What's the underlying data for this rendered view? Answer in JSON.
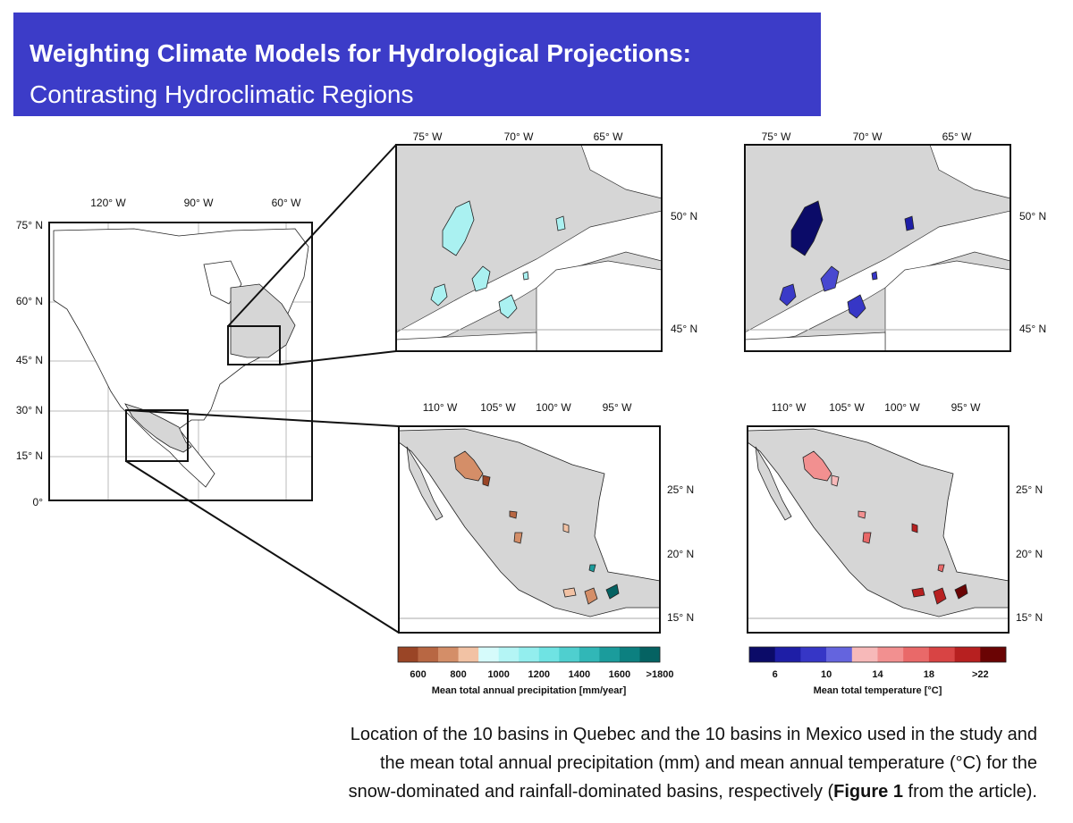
{
  "header": {
    "title": "Weighting Climate Models for Hydrological Projections:",
    "subtitle": "Contrasting Hydroclimatic Regions"
  },
  "overview_map": {
    "lon_labels": [
      "120° W",
      "90° W",
      "60° W"
    ],
    "lat_labels": [
      "75° N",
      "60° N",
      "45° N",
      "30° N",
      "15° N",
      "0°"
    ]
  },
  "quebec_precip_map": {
    "lon_labels": [
      "75° W",
      "70° W",
      "65° W"
    ],
    "lat_labels": [
      "50° N",
      "45° N"
    ]
  },
  "quebec_temp_map": {
    "lon_labels": [
      "75° W",
      "70° W",
      "65° W"
    ],
    "lat_labels": [
      "50° N",
      "45° N"
    ]
  },
  "mexico_precip_map": {
    "lon_labels": [
      "110° W",
      "105° W",
      "100° W",
      "95° W"
    ],
    "lat_labels": [
      "25° N",
      "20° N",
      "15° N"
    ]
  },
  "mexico_temp_map": {
    "lon_labels": [
      "110° W",
      "105° W",
      "100° W",
      "95° W"
    ],
    "lat_labels": [
      "25° N",
      "20° N",
      "15° N"
    ]
  },
  "precip_colorbar": {
    "title": "Mean total annual precipitation [mm/year]",
    "labels": [
      "600",
      "800",
      "1000",
      "1200",
      "1400",
      "1600",
      ">1800"
    ],
    "colors": [
      "#9a4526",
      "#b86743",
      "#d48e68",
      "#f2c2a4",
      "#d6fbfb",
      "#b4f5f5",
      "#93eeee",
      "#6fe3e3",
      "#4fcfcf",
      "#31b7b7",
      "#1b9c9c",
      "#0c8080",
      "#056262"
    ]
  },
  "temp_colorbar": {
    "title": "Mean total temperature [°C]",
    "labels": [
      "6",
      "10",
      "14",
      "18",
      ">22"
    ],
    "colors": [
      "#0b0b68",
      "#1e1ea6",
      "#3636c6",
      "#6464de",
      "#f7b9b9",
      "#f29090",
      "#e96969",
      "#d84444",
      "#b72020",
      "#6a0404"
    ]
  },
  "caption": {
    "line1": "Location of the 10 basins in Quebec and the 10 basins in Mexico used in the study and",
    "line2": "the mean total annual precipitation (mm) and mean annual temperature (°C) for the",
    "line3_start": "snow-dominated and rainfall-dominated basins, respectively (",
    "line3_bold": "Figure 1",
    "line3_end": " from the article)."
  }
}
